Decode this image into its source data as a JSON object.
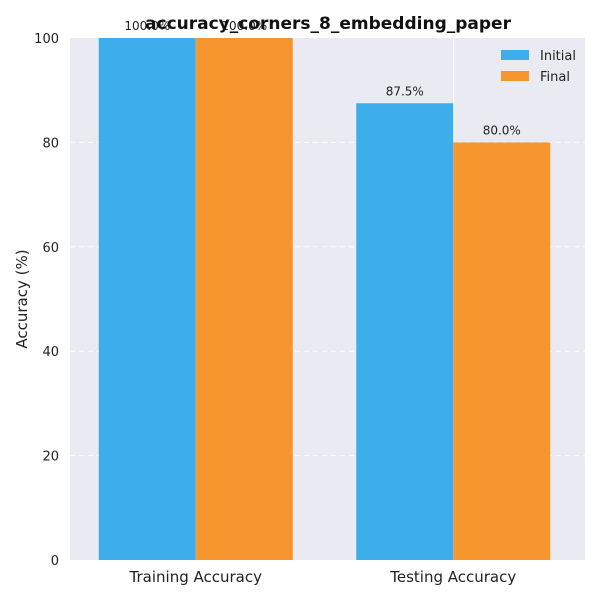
{
  "chart_data": {
    "type": "bar",
    "title": "accuracy_corners_8_embedding_paper",
    "xlabel": "",
    "ylabel": "Accuracy (%)",
    "ylim": [
      0,
      100
    ],
    "yticks": [
      0,
      20,
      40,
      60,
      80,
      100
    ],
    "categories": [
      "Training Accuracy",
      "Testing Accuracy"
    ],
    "series": [
      {
        "name": "Initial",
        "values": [
          100.0,
          87.5
        ],
        "labels": [
          "100.0%",
          "87.5%"
        ],
        "color": "#3daeeb"
      },
      {
        "name": "Final",
        "values": [
          100.0,
          80.0
        ],
        "labels": [
          "100.0%",
          "80.0%"
        ],
        "color": "#f7952f"
      }
    ],
    "grid": true,
    "legend_position": "top-right",
    "background": "#eaeaf2"
  }
}
